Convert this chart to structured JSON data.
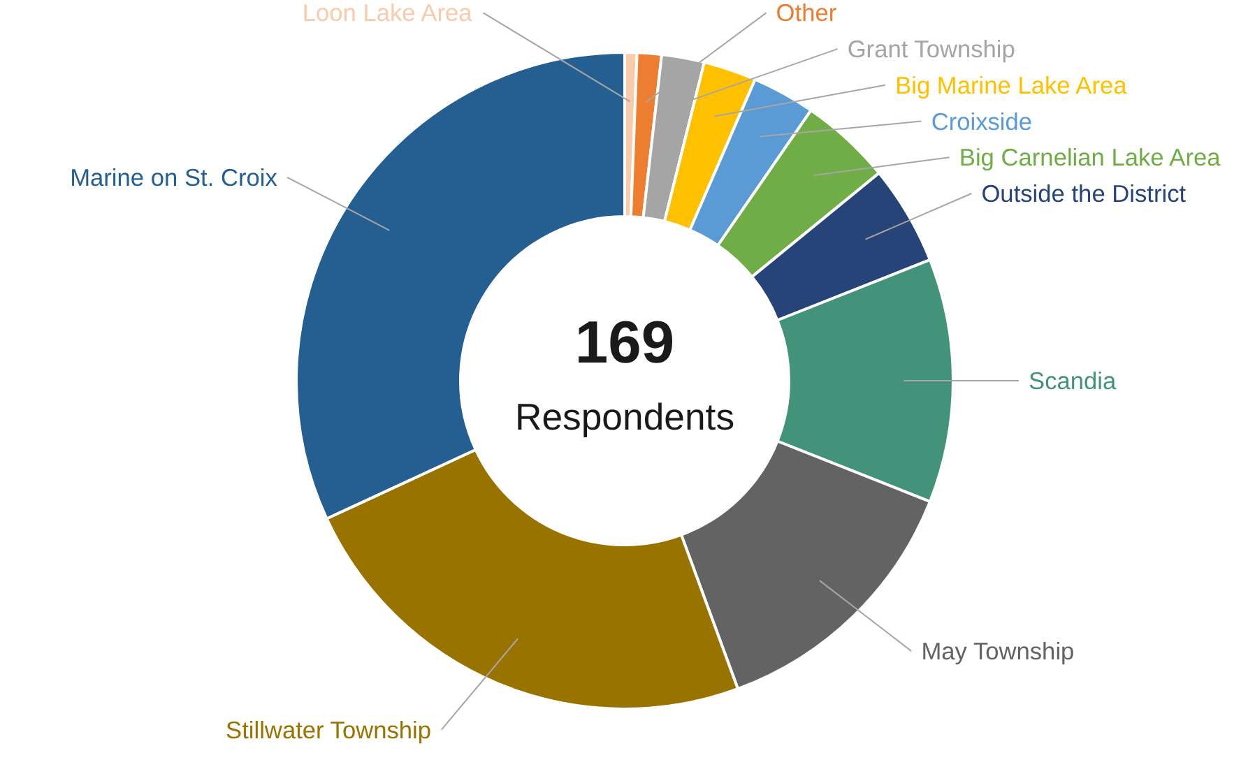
{
  "chart_data": {
    "type": "donut",
    "categories": [
      "Loon Lake Area",
      "Other",
      "Grant Township",
      "Big Marine Lake Area",
      "Croixside",
      "Big Carnelian Lake Area",
      "Outside the District",
      "Scandia",
      "May Township",
      "Stillwater Township",
      "Marine on St. Croix"
    ],
    "values": [
      0.6,
      1.2,
      2.1,
      2.6,
      3.1,
      4.5,
      4.9,
      12,
      13.4,
      23.7,
      31.9
    ],
    "colors": [
      "#f8cbad",
      "#ed7d31",
      "#a5a5a5",
      "#ffc000",
      "#5b9bd5",
      "#70ad47",
      "#264478",
      "#43937a",
      "#636363",
      "#997300",
      "#255e91"
    ],
    "annotations": [
      "169",
      "Respondents"
    ]
  }
}
